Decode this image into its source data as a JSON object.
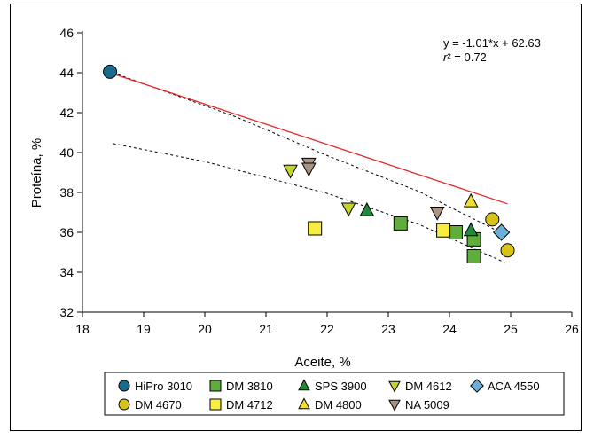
{
  "chart_data": {
    "type": "scatter",
    "xlabel": "Aceite, %",
    "ylabel": "Proteína, %",
    "xlim": [
      18,
      26
    ],
    "ylim": [
      32,
      46
    ],
    "xticks": [
      18,
      19,
      20,
      21,
      22,
      23,
      24,
      25,
      26
    ],
    "yticks": [
      32,
      34,
      36,
      38,
      40,
      42,
      44,
      46
    ],
    "equation": "y = -1.01*x + 62.63",
    "r2_label": "r² = 0.72",
    "grid": false,
    "legend_position": "bottom",
    "regression": {
      "slope": -1.01,
      "intercept": 62.63,
      "x_range": [
        18.5,
        24.95
      ],
      "color": "#e8262b"
    },
    "confidence_bands": {
      "upper": [
        [
          18.5,
          44.0
        ],
        [
          20.5,
          41.8
        ],
        [
          22.0,
          39.85
        ],
        [
          23.5,
          38.05
        ],
        [
          24.9,
          35.9
        ]
      ],
      "lower": [
        [
          18.5,
          40.45
        ],
        [
          20.0,
          39.55
        ],
        [
          22.0,
          37.95
        ],
        [
          23.5,
          36.4
        ],
        [
          24.9,
          34.5
        ]
      ]
    },
    "series": [
      {
        "name": "HiPro 3010",
        "marker": "circle",
        "color": "#1b6b8f",
        "points": [
          [
            18.45,
            44.05
          ]
        ]
      },
      {
        "name": "DM 3810",
        "marker": "square",
        "color": "#5fae3b",
        "points": [
          [
            23.2,
            36.45
          ],
          [
            24.1,
            36.0
          ],
          [
            24.4,
            35.65
          ],
          [
            24.4,
            34.8
          ]
        ]
      },
      {
        "name": "SPS 3900",
        "marker": "triangle-up",
        "color": "#1e8a3a",
        "points": [
          [
            22.65,
            37.1
          ],
          [
            24.35,
            36.1
          ]
        ]
      },
      {
        "name": "DM 4612",
        "marker": "triangle-down",
        "color": "#c3d42c",
        "points": [
          [
            21.4,
            39.1
          ],
          [
            22.35,
            37.2
          ]
        ]
      },
      {
        "name": "ACA 4550",
        "marker": "diamond",
        "color": "#6baed6",
        "points": [
          [
            24.85,
            36.0
          ]
        ]
      },
      {
        "name": "DM 4670",
        "marker": "circle",
        "color": "#d6c219",
        "points": [
          [
            24.7,
            36.65
          ],
          [
            24.95,
            35.1
          ]
        ]
      },
      {
        "name": "DM 4712",
        "marker": "square",
        "color": "#f7ee3f",
        "points": [
          [
            21.8,
            36.2
          ],
          [
            23.9,
            36.1
          ]
        ]
      },
      {
        "name": "DM 4800",
        "marker": "triangle-up",
        "color": "#f2e028",
        "points": [
          [
            24.35,
            37.55
          ]
        ]
      },
      {
        "name": "NA 5009",
        "marker": "triangle-down",
        "color": "#a89484",
        "points": [
          [
            21.7,
            39.45
          ],
          [
            21.7,
            39.2
          ],
          [
            23.8,
            37.0
          ]
        ]
      }
    ]
  }
}
